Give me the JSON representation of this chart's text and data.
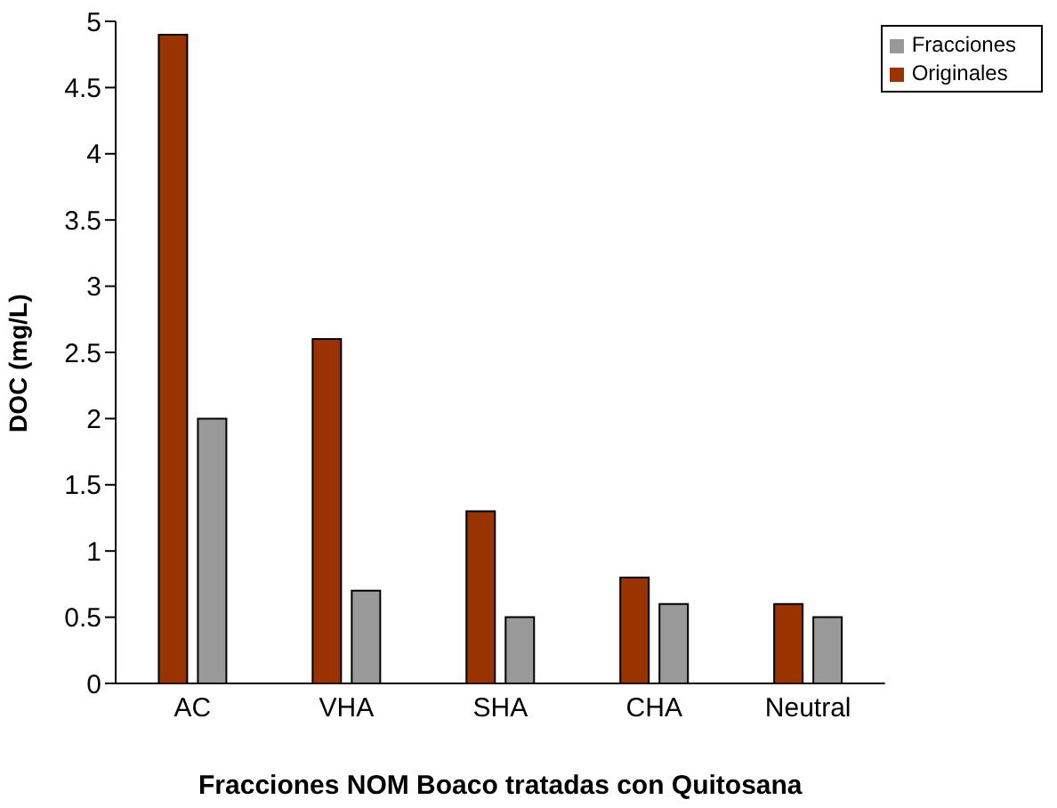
{
  "chart_data": {
    "type": "bar",
    "xlabel": "Fracciones NOM Boaco tratadas con Quitosana",
    "ylabel": "DOC (mg/L)",
    "categories": [
      "AC",
      "VHA",
      "SHA",
      "CHA",
      "Neutral"
    ],
    "series": [
      {
        "name": "Originales",
        "color": "#993300",
        "values": [
          4.9,
          2.6,
          1.3,
          0.8,
          0.6
        ]
      },
      {
        "name": "Fracciones",
        "color": "#999999",
        "values": [
          2.0,
          0.7,
          0.5,
          0.6,
          0.5
        ]
      }
    ],
    "ylim": [
      0,
      5
    ],
    "yticks": [
      0,
      0.5,
      1,
      1.5,
      2,
      2.5,
      3,
      3.5,
      4,
      4.5,
      5
    ],
    "grid": false,
    "legend": "top right"
  }
}
